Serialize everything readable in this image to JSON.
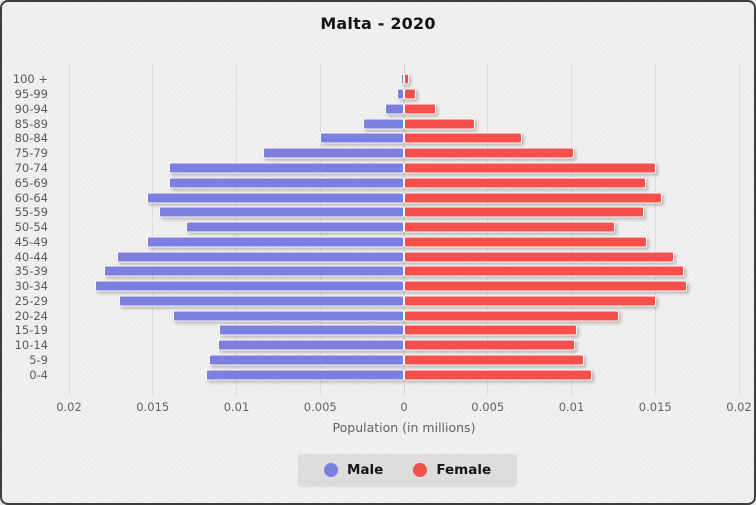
{
  "title": "Malta - 2020",
  "xlabel": "Population (in millions)",
  "legend": {
    "male": "Male",
    "female": "Female"
  },
  "axis": {
    "ticks": [
      "0.02",
      "0.015",
      "0.01",
      "0.005",
      "0",
      "0.005",
      "0.01",
      "0.015",
      "0.02"
    ]
  },
  "colors": {
    "male": "#7c7fdd",
    "female": "#f4514c",
    "background": "#f2f1ef",
    "legend_background": "#dcdcda",
    "grid": "#dddddc",
    "tick_text": "#636363",
    "title_text": "#141414"
  },
  "chart_data": {
    "type": "bar",
    "subtype": "population-pyramid",
    "title": "Malta - 2020",
    "xlabel": "Population (in millions)",
    "unit": "millions",
    "xlim": [
      0,
      0.02
    ],
    "grid": true,
    "legend_position": "bottom",
    "categories": [
      "100 +",
      "95-99",
      "90-94",
      "85-89",
      "80-84",
      "75-79",
      "70-74",
      "65-69",
      "60-64",
      "55-59",
      "50-54",
      "45-49",
      "40-44",
      "35-39",
      "30-34",
      "25-29",
      "20-24",
      "15-19",
      "10-14",
      "5-9",
      "0-4"
    ],
    "series": [
      {
        "name": "Male",
        "values": [
          5e-05,
          0.0003,
          0.001,
          0.0023,
          0.0049,
          0.0083,
          0.0139,
          0.0139,
          0.0152,
          0.0145,
          0.0129,
          0.0152,
          0.017,
          0.0178,
          0.0183,
          0.0169,
          0.0137,
          0.0109,
          0.011,
          0.0115,
          0.0117
        ]
      },
      {
        "name": "Female",
        "values": [
          0.00015,
          0.0006,
          0.0018,
          0.0041,
          0.0069,
          0.01,
          0.0149,
          0.0143,
          0.0153,
          0.0142,
          0.0125,
          0.0144,
          0.016,
          0.0166,
          0.0168,
          0.0149,
          0.0127,
          0.0102,
          0.0101,
          0.0106,
          0.0111
        ]
      }
    ]
  }
}
